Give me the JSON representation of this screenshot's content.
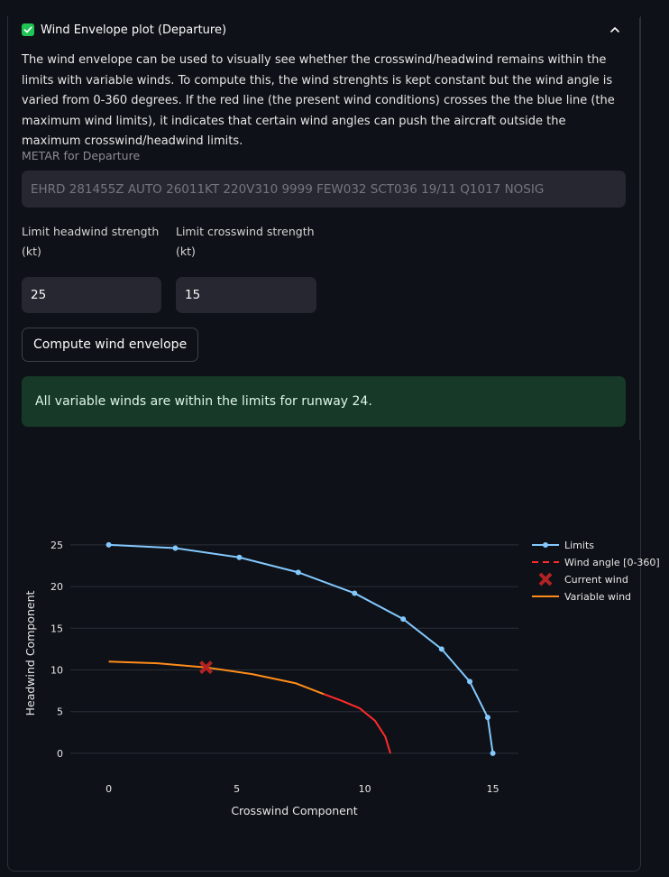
{
  "expander": {
    "title": "Wind Envelope plot (Departure)",
    "checked": true,
    "description": "The wind envelope can be used to visually see whether the crosswind/headwind remains within the limits with variable winds. To compute this, the wind strenghts is kept constant but the wind angle is varied from 0-360 degrees. If the red line (the present wind conditions) crosses the the blue line (the maximum wind limits), it indicates that certain wind angles can push the aircraft outside the maximum crosswind/headwind limits."
  },
  "metar": {
    "label": "METAR for Departure",
    "value": "EHRD 281455Z AUTO 26011KT 220V310 9999 FEW032 SCT036 19/11 Q1017 NOSIG"
  },
  "headwind_limit": {
    "label_line1": "Limit headwind strength",
    "label_line2": "(kt)",
    "value": "25"
  },
  "crosswind_limit": {
    "label_line1": "Limit crosswind strength",
    "label_line2": "(kt)",
    "value": "15"
  },
  "compute_button": {
    "label": "Compute wind envelope"
  },
  "alert": {
    "message": "All variable winds are within the limits for runway 24."
  },
  "colors": {
    "limits": "#83c9ff",
    "wind_angle": "#ff2b2b",
    "current_wind": "#b22222",
    "variable_wind": "#ff8c1a",
    "success_bg": "#173928"
  },
  "chart_data": {
    "type": "line",
    "xlabel": "Crosswind Component",
    "ylabel": "Headwind Component",
    "xlim": [
      -1.5,
      16
    ],
    "ylim": [
      -2.5,
      26.5
    ],
    "xticks": [
      0,
      5,
      10,
      15
    ],
    "yticks": [
      0,
      5,
      10,
      15,
      20,
      25
    ],
    "grid": true,
    "legend_position": "top-right",
    "legend": [
      "Limits",
      "Wind angle [0-360]",
      "Current wind",
      "Variable wind"
    ],
    "series": [
      {
        "name": "Limits",
        "style": "line+markers",
        "x": [
          0,
          2.6,
          5.1,
          7.4,
          9.6,
          11.5,
          13.0,
          14.1,
          14.8,
          15.0
        ],
        "y": [
          25.0,
          24.6,
          23.5,
          21.7,
          19.2,
          16.1,
          12.5,
          8.6,
          4.3,
          0.0
        ]
      },
      {
        "name": "Wind angle [0-360]",
        "style": "dash",
        "x": [
          8.4,
          9.1,
          9.8,
          10.4,
          10.8,
          11.0
        ],
        "y": [
          7.1,
          6.3,
          5.4,
          3.9,
          2.0,
          0.0
        ]
      },
      {
        "name": "Current wind",
        "style": "x-marker",
        "x": [
          3.8
        ],
        "y": [
          10.3
        ]
      },
      {
        "name": "Variable wind",
        "style": "line",
        "x": [
          0,
          1.9,
          3.8,
          5.6,
          7.3,
          8.4
        ],
        "y": [
          11.0,
          10.8,
          10.3,
          9.5,
          8.4,
          7.1
        ]
      }
    ]
  }
}
